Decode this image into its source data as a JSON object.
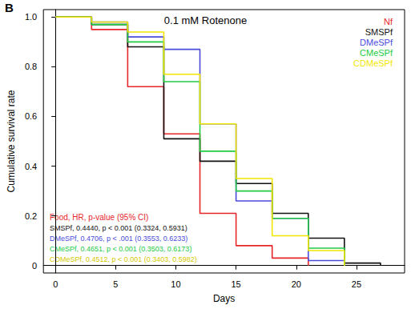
{
  "chart_data": {
    "type": "line",
    "panel_label": "B",
    "title": "0.1 mM Rotenone",
    "x_label": "Days",
    "y_label": "Cumulative survival rate",
    "line_style": "step",
    "xlim": [
      -1,
      29
    ],
    "xticks": [
      0,
      5,
      10,
      15,
      20,
      25
    ],
    "ylim": [
      -0.03,
      1.03
    ],
    "yticks": [
      0,
      0.2,
      0.4,
      0.6,
      0.8,
      {
        "value": 1,
        "label": "1.0"
      }
    ],
    "grid": false,
    "legend": "top-right",
    "series": [
      {
        "name": "Nf",
        "color": "#e8262a",
        "x": [
          0,
          3,
          6,
          9,
          12,
          15,
          18,
          21
        ],
        "values": [
          1,
          0.95,
          0.72,
          0.53,
          0.21,
          0.08,
          0.03,
          0
        ]
      },
      {
        "name": "SMSPf",
        "color": "#111111",
        "x": [
          0,
          3,
          6,
          9,
          12,
          15,
          18,
          21,
          24,
          27
        ],
        "values": [
          1,
          0.97,
          0.88,
          0.51,
          0.42,
          0.33,
          0.21,
          0.11,
          0.01,
          0
        ]
      },
      {
        "name": "DMeSPf",
        "color": "#4b4bdc",
        "x": [
          0,
          3,
          6,
          9,
          12,
          15,
          18,
          21,
          24
        ],
        "values": [
          1,
          0.98,
          0.92,
          0.87,
          0.57,
          0.26,
          0.19,
          0.02,
          0
        ]
      },
      {
        "name": "CMeSPf",
        "color": "#22cc44",
        "x": [
          0,
          3,
          6,
          9,
          12,
          15,
          18,
          21,
          24
        ],
        "values": [
          1,
          0.97,
          0.9,
          0.74,
          0.46,
          0.3,
          0.19,
          0.07,
          0
        ]
      },
      {
        "name": "CDMeSPf",
        "color": "#f2e600",
        "x": [
          0,
          3,
          6,
          9,
          12,
          15,
          18,
          21,
          24
        ],
        "values": [
          1,
          0.98,
          0.94,
          0.77,
          0.57,
          0.35,
          0.12,
          0.06,
          0
        ]
      }
    ],
    "annotations": [
      {
        "text": "Food, HR, p-value (95% CI)",
        "color": "#e8262a"
      },
      {
        "text": "SMSPf, 0.4440, p < 0.001 (0.3324, 0.5931)",
        "color": "#111111"
      },
      {
        "text": "DMeSPf, 0.4706, p < .001 (0.3553, 0.6233)",
        "color": "#4b4bdc"
      },
      {
        "text": "CMeSPf, 0.4651, p < 0.001 (0.3503, 0.6173)",
        "color": "#22cc44"
      },
      {
        "text": "CDMeSPf, 0.4512, p < 0.001 (0.3403, 0.5982)",
        "color": "#d4c800"
      }
    ]
  }
}
